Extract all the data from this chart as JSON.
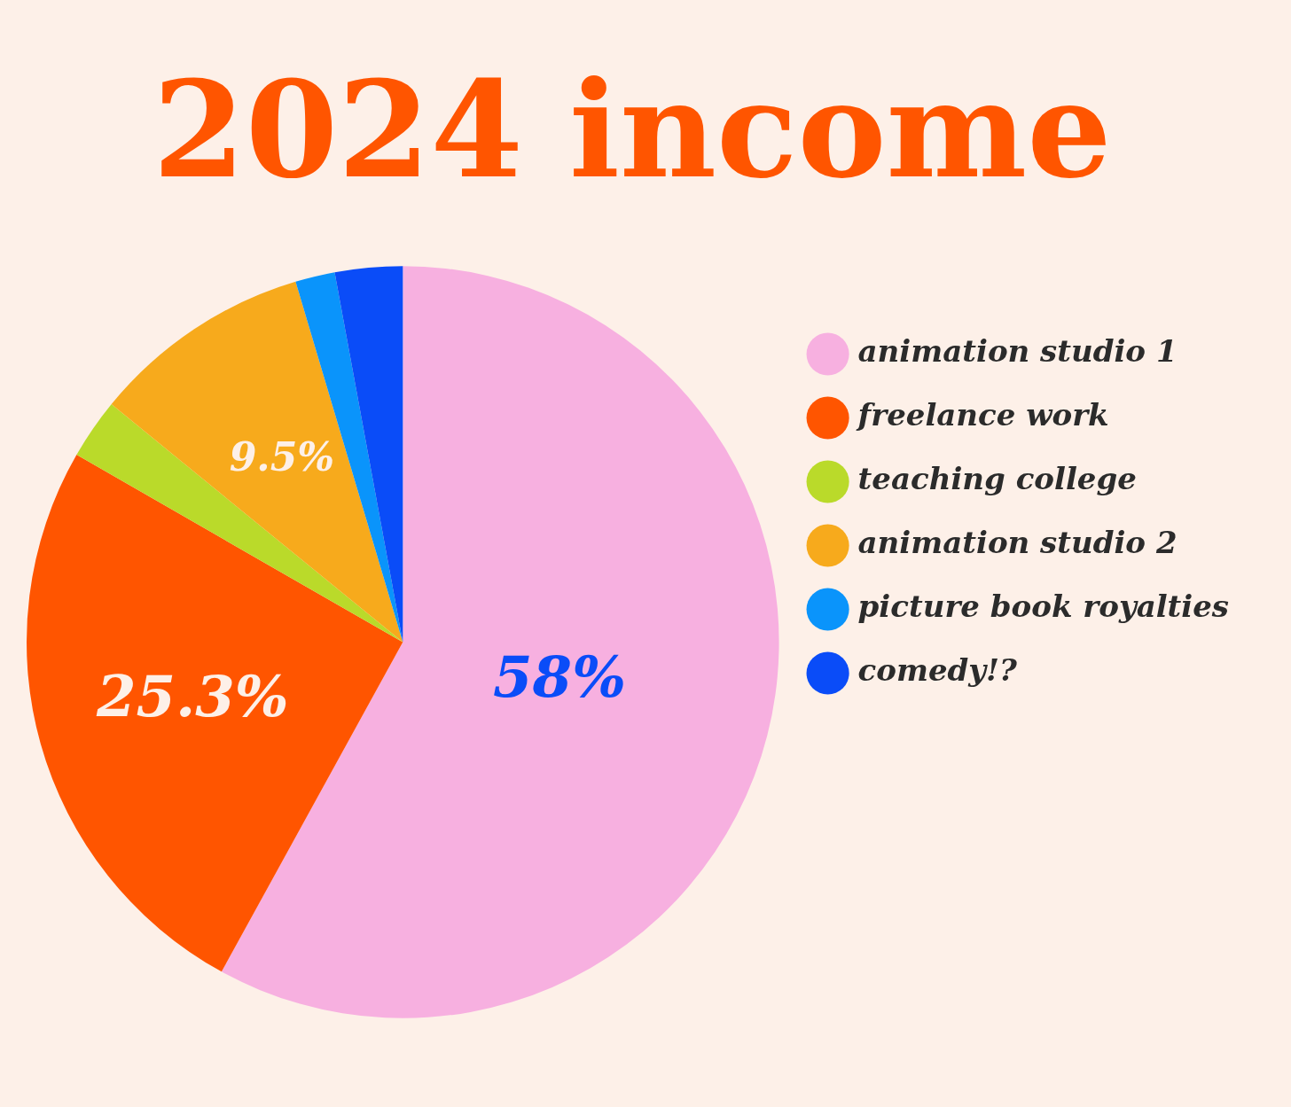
{
  "chart_data": {
    "type": "pie",
    "title": "2024 income",
    "categories": [
      "animation studio 1",
      "freelance work",
      "teaching college",
      "animation studio 2",
      "picture book royalties",
      "comedy!?"
    ],
    "values": [
      58,
      25.3,
      2.6,
      9.5,
      1.7,
      2.9
    ],
    "value_labels": [
      "58%",
      "25.3%",
      null,
      "9.5%",
      null,
      null
    ],
    "colors": [
      "#f7b0e0",
      "#ff5500",
      "#bada2a",
      "#f7aa1c",
      "#0a94fb",
      "#0a4cf8"
    ],
    "legend": "right"
  }
}
